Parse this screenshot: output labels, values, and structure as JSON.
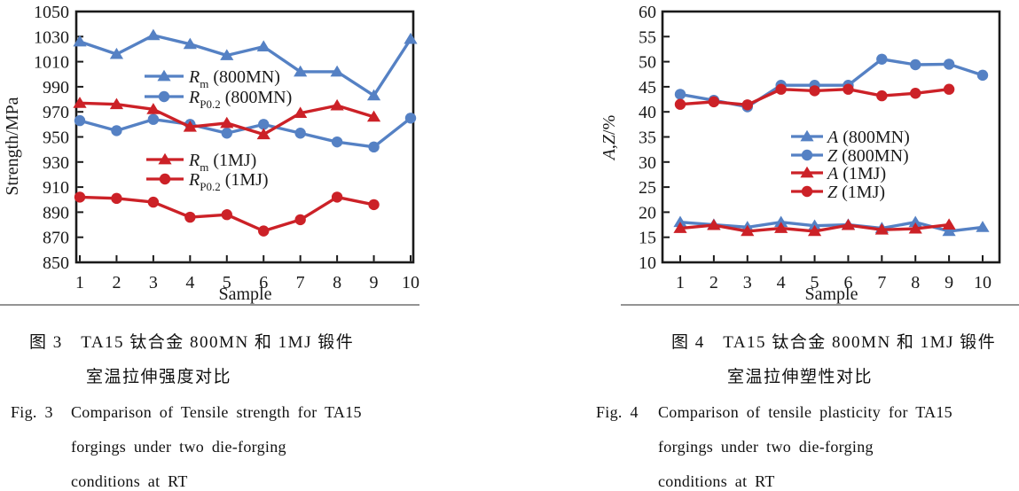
{
  "colors": {
    "blue": "#5581c4",
    "red": "#cc2127",
    "axis": "#1a1a1a",
    "text": "#1a1a1a",
    "divider": "#949494",
    "background": "#ffffff"
  },
  "figures": [
    {
      "caption_zh_line1": "图 3　TA15 钛合金 800MN 和 1MJ 锻件",
      "caption_zh_line2": "室温拉伸强度对比",
      "caption_en_label": "Fig. 3",
      "caption_en_lines": [
        "Comparison of Tensile strength for TA15",
        "forgings under two die-forging",
        "conditions at RT"
      ]
    },
    {
      "caption_zh_line1": "图 4　TA15 钛合金 800MN 和 1MJ 锻件",
      "caption_zh_line2": "室温拉伸塑性对比",
      "caption_en_label": "Fig. 4",
      "caption_en_lines": [
        "Comparison of tensile plasticity for TA15",
        "forgings under two die-forging",
        "conditions at RT"
      ]
    }
  ],
  "chart_data": [
    {
      "type": "line",
      "title": "",
      "xlabel": "Sample",
      "ylabel": "Strength/MPa",
      "x": [
        1,
        2,
        3,
        4,
        5,
        6,
        7,
        8,
        9,
        10
      ],
      "xticks": [
        "1",
        "2",
        "3",
        "4",
        "5",
        "6",
        "7",
        "8",
        "9",
        "10"
      ],
      "xlim": [
        1,
        10
      ],
      "ylim": [
        850,
        1050
      ],
      "yticks": [
        850,
        870,
        890,
        910,
        930,
        950,
        970,
        990,
        1010,
        1030,
        1050
      ],
      "grid": false,
      "legend_position": "inside two groups: blue pair upper-middle, red pair center-left-lower",
      "series": [
        {
          "name": "Rm (800MN)",
          "label_parts": [
            {
              "t": "R",
              "i": true
            },
            {
              "t": "m",
              "sub": true
            },
            {
              "t": " (800MN)"
            }
          ],
          "marker": "triangle",
          "color": "blue",
          "values": [
            1026,
            1016,
            1031,
            1024,
            1015,
            1022,
            1002,
            1002,
            983,
            1028
          ]
        },
        {
          "name": "RP0.2 (800MN)",
          "label_parts": [
            {
              "t": "R",
              "i": true
            },
            {
              "t": "P0.2",
              "sub": true
            },
            {
              "t": " (800MN)"
            }
          ],
          "marker": "circle",
          "color": "blue",
          "values": [
            963,
            955,
            964,
            960,
            953,
            960,
            953,
            946,
            942,
            965
          ]
        },
        {
          "name": "Rm (1MJ)",
          "label_parts": [
            {
              "t": "R",
              "i": true
            },
            {
              "t": "m",
              "sub": true
            },
            {
              "t": " (1MJ)"
            }
          ],
          "marker": "triangle",
          "color": "red",
          "values": [
            977,
            976,
            972,
            958,
            961,
            952,
            969,
            975,
            966
          ]
        },
        {
          "name": "RP0.2 (1MJ)",
          "label_parts": [
            {
              "t": "R",
              "i": true
            },
            {
              "t": "P0.2",
              "sub": true
            },
            {
              "t": " (1MJ)"
            }
          ],
          "marker": "circle",
          "color": "red",
          "values": [
            902,
            901,
            898,
            886,
            888,
            875,
            884,
            902,
            896
          ]
        }
      ],
      "legend": {
        "groups": [
          {
            "x1": 163,
            "x2": 207,
            "tx": 213,
            "ys": [
              86,
              109
            ],
            "series": [
              0,
              1
            ]
          },
          {
            "x1": 165,
            "x2": 207,
            "tx": 213,
            "ys": [
              180,
              202
            ],
            "series": [
              2,
              3
            ]
          }
        ]
      }
    },
    {
      "type": "line",
      "title": "",
      "xlabel": "Sample",
      "ylabel": "A,Z/%",
      "ylabel_parts": [
        {
          "t": "A",
          "i": true
        },
        {
          "t": ","
        },
        {
          "t": "Z",
          "i": true
        },
        {
          "t": "/%"
        }
      ],
      "x": [
        1,
        2,
        3,
        4,
        5,
        6,
        7,
        8,
        9,
        10
      ],
      "xticks": [
        "1",
        "2",
        "3",
        "4",
        "5",
        "6",
        "7",
        "8",
        "9",
        "10"
      ],
      "xlim": [
        1,
        10
      ],
      "ylim": [
        10,
        60
      ],
      "yticks": [
        10,
        15,
        20,
        25,
        30,
        35,
        40,
        45,
        50,
        55,
        60
      ],
      "grid": false,
      "legend_position": "inside middle-right, single group of four",
      "series": [
        {
          "name": "A (800MN)",
          "label_parts": [
            {
              "t": "A",
              "i": true
            },
            {
              "t": " (800MN)"
            }
          ],
          "marker": "triangle",
          "color": "blue",
          "values": [
            18,
            17.5,
            17,
            18,
            17.3,
            17.5,
            16.8,
            18,
            16.2,
            17
          ]
        },
        {
          "name": "Z (800MN)",
          "label_parts": [
            {
              "t": "Z",
              "i": true
            },
            {
              "t": " (800MN)"
            }
          ],
          "marker": "circle",
          "color": "blue",
          "values": [
            43.5,
            42.3,
            41,
            45.3,
            45.3,
            45.3,
            50.5,
            49.4,
            49.5,
            47.3
          ]
        },
        {
          "name": "A (1MJ)",
          "label_parts": [
            {
              "t": "A",
              "i": true
            },
            {
              "t": " (1MJ)"
            }
          ],
          "marker": "triangle",
          "color": "red",
          "values": [
            16.8,
            17.4,
            16.2,
            16.8,
            16.2,
            17.4,
            16.5,
            16.7,
            17.5
          ]
        },
        {
          "name": "Z (1MJ)",
          "label_parts": [
            {
              "t": "Z",
              "i": true
            },
            {
              "t": " (1MJ)"
            }
          ],
          "marker": "circle",
          "color": "red",
          "values": [
            41.5,
            42,
            41.4,
            44.5,
            44.2,
            44.5,
            43.2,
            43.7,
            44.5
          ]
        }
      ],
      "legend": {
        "groups": [
          {
            "x1": 317,
            "x2": 353,
            "tx": 358,
            "ys": [
              154,
              175,
              195,
              216
            ],
            "series": [
              0,
              1,
              2,
              3
            ]
          }
        ]
      }
    }
  ]
}
